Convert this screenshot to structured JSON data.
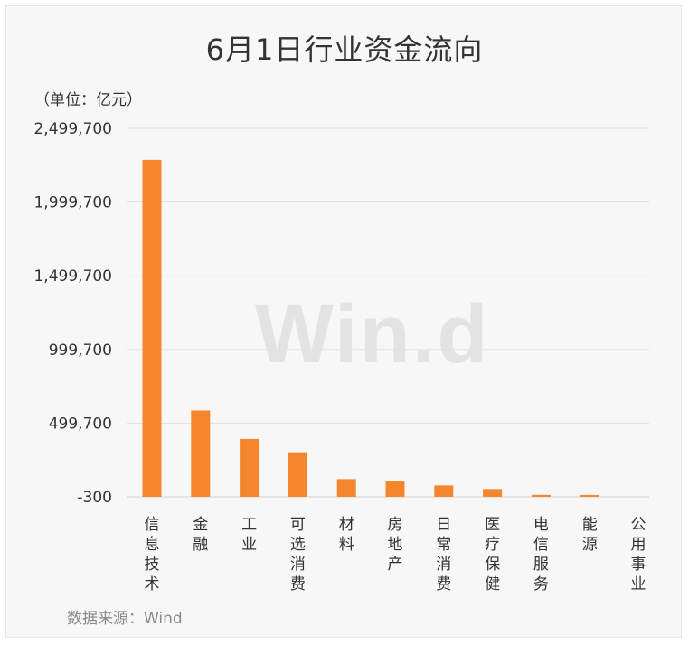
{
  "chart_data": {
    "type": "bar",
    "title": "6月1日行业资金流向",
    "unit_label": "（单位：亿元）",
    "source": "数据来源：Wind",
    "watermark": "Win.d",
    "categories": [
      "信息技术",
      "金融",
      "工业",
      "可选消费",
      "材料",
      "房地产",
      "日常消费",
      "医疗保健",
      "电信服务",
      "能源",
      "公用事业"
    ],
    "values": [
      2286000,
      585000,
      392000,
      302000,
      120000,
      107000,
      77000,
      53000,
      13000,
      11000,
      0
    ],
    "ylim": [
      -300,
      2499700
    ],
    "yticks": [
      -300,
      499700,
      999700,
      1499700,
      1999700,
      2499700
    ],
    "ytick_labels": [
      "-300",
      "499,700",
      "999,700",
      "1,499,700",
      "1,999,700",
      "2,499,700"
    ],
    "bar_color": "#f5862d",
    "grid": true
  }
}
